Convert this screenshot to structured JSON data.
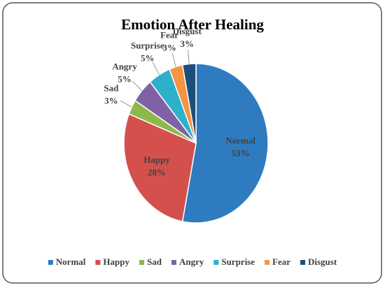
{
  "chart_data": {
    "type": "pie",
    "title": "Emotion After Healing",
    "categories": [
      "Normal",
      "Happy",
      "Sad",
      "Angry",
      "Surprise",
      "Fear",
      "Disgust"
    ],
    "values": [
      53,
      28,
      3,
      5,
      5,
      3,
      3
    ],
    "value_labels": [
      "53%",
      "28%",
      "3%",
      "5%",
      "5%",
      "3%",
      "3%"
    ],
    "colors": [
      "#2e7bc0",
      "#d4504c",
      "#8db84a",
      "#7f62a6",
      "#2eb0cb",
      "#f59443",
      "#1c4e7a"
    ],
    "legend": "bottom"
  }
}
